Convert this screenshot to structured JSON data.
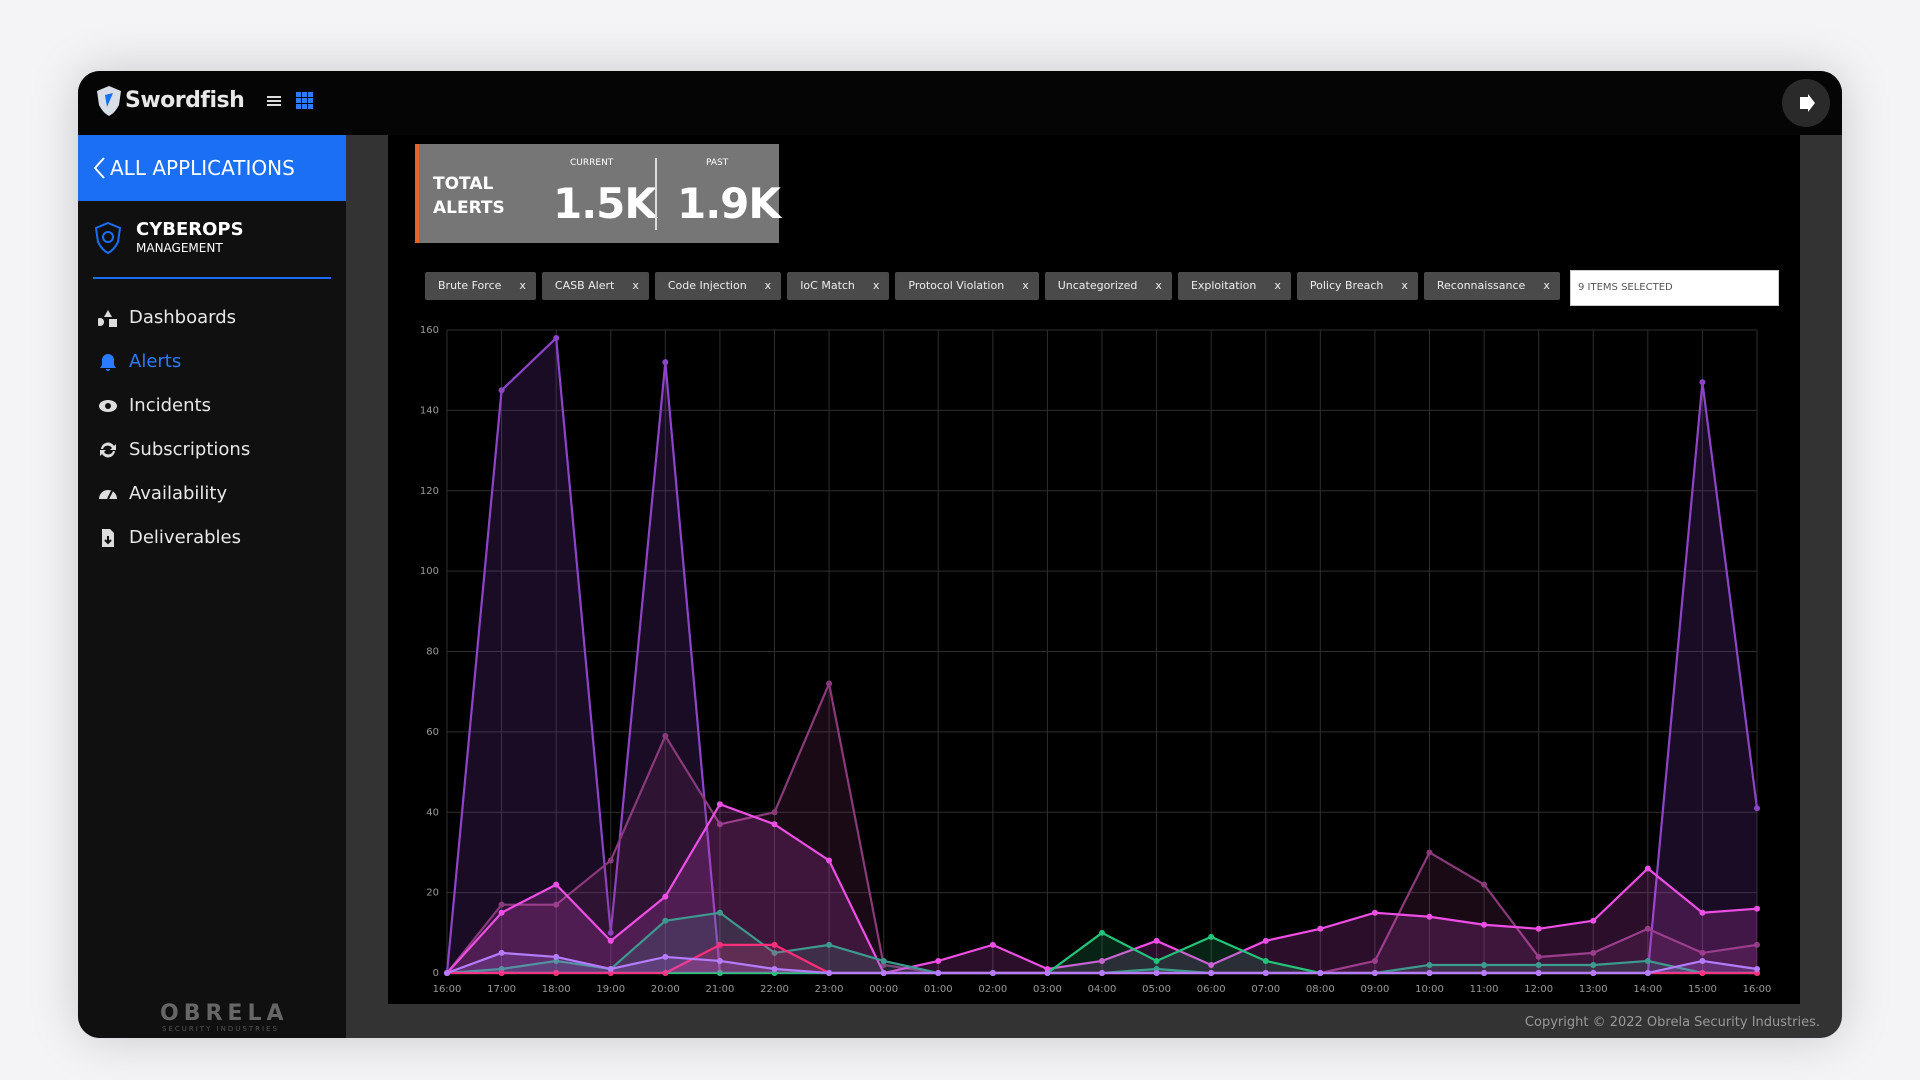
{
  "header": {
    "brand": "Swordfish"
  },
  "sidebar": {
    "back": "ALL APPLICATIONS",
    "app_title": "CYBEROPS",
    "app_subtitle": "MANAGEMENT",
    "nav": [
      "Dashboards",
      "Alerts",
      "Incidents",
      "Subscriptions",
      "Availability",
      "Deliverables"
    ],
    "logo": "OBRELA",
    "logo_sub": "SECURITY INDUSTRIES"
  },
  "kpi": {
    "title": "TOTAL ALERTS",
    "current_label": "CURRENT",
    "current": "1.5K",
    "past_label": "PAST",
    "past": "1.9K"
  },
  "filters": {
    "chips": [
      "Brute Force",
      "CASB Alert",
      "Code Injection",
      "IoC Match",
      "Protocol Violation",
      "Uncategorized",
      "Exploitation",
      "Policy Breach",
      "Reconnaissance"
    ],
    "chip_remove": "x",
    "selection": "9 ITEMS SELECTED"
  },
  "chart_data": {
    "type": "area",
    "categories": [
      "16:00",
      "17:00",
      "18:00",
      "19:00",
      "20:00",
      "21:00",
      "22:00",
      "23:00",
      "00:00",
      "01:00",
      "02:00",
      "03:00",
      "04:00",
      "05:00",
      "06:00",
      "07:00",
      "08:00",
      "09:00",
      "10:00",
      "11:00",
      "12:00",
      "13:00",
      "14:00",
      "15:00",
      "16:00"
    ],
    "ylim": [
      0,
      160
    ],
    "yticks": [
      0,
      20,
      40,
      60,
      80,
      100,
      120,
      140,
      160
    ],
    "grid": true,
    "series": [
      {
        "color": "#8e44c9",
        "values": [
          0,
          145,
          158,
          10,
          152,
          0,
          0,
          0,
          0,
          0,
          0,
          0,
          0,
          0,
          0,
          0,
          0,
          0,
          0,
          0,
          0,
          0,
          0,
          147,
          41
        ]
      },
      {
        "color": "#8a3a7a",
        "values": [
          0,
          17,
          17,
          28,
          59,
          37,
          40,
          72,
          2,
          0,
          0,
          0,
          0,
          0,
          0,
          0,
          0,
          3,
          30,
          22,
          4,
          5,
          11,
          5,
          7
        ]
      },
      {
        "color": "#ee4ee6",
        "values": [
          0,
          15,
          22,
          8,
          19,
          42,
          37,
          28,
          0,
          3,
          7,
          1,
          3,
          8,
          2,
          8,
          11,
          15,
          14,
          12,
          11,
          13,
          26,
          15,
          16
        ]
      },
      {
        "color": "#3d9a8f",
        "values": [
          0,
          1,
          3,
          1,
          13,
          15,
          5,
          7,
          3,
          0,
          0,
          0,
          0,
          1,
          0,
          0,
          0,
          0,
          2,
          2,
          2,
          2,
          3,
          0,
          0
        ]
      },
      {
        "color": "#22c47a",
        "values": [
          0,
          0,
          0,
          0,
          0,
          0,
          0,
          0,
          0,
          0,
          0,
          0,
          10,
          3,
          9,
          3,
          0,
          0,
          0,
          0,
          0,
          0,
          0,
          0,
          0
        ]
      },
      {
        "color": "#ff2e7a",
        "values": [
          0,
          0,
          0,
          0,
          0,
          7,
          7,
          0,
          0,
          0,
          0,
          0,
          0,
          0,
          0,
          0,
          0,
          0,
          0,
          0,
          0,
          0,
          0,
          0,
          0
        ]
      },
      {
        "color": "#b57cff",
        "values": [
          0,
          5,
          4,
          1,
          4,
          3,
          1,
          0,
          0,
          0,
          0,
          0,
          0,
          0,
          0,
          0,
          0,
          0,
          0,
          0,
          0,
          0,
          0,
          3,
          1
        ]
      }
    ]
  },
  "footer": {
    "copyright": "Copyright © 2022 Obrela Security Industries."
  }
}
